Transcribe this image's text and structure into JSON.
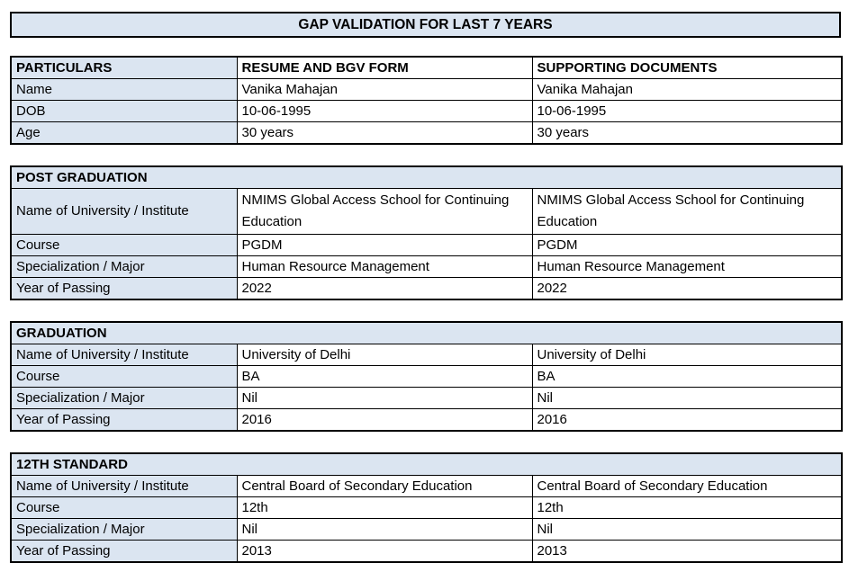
{
  "title": "GAP VALIDATION FOR LAST 7 YEARS",
  "colors": {
    "header_fill": "#dbe5f1",
    "border": "#000000",
    "text": "#000000"
  },
  "particulars_table": {
    "headers": [
      "PARTICULARS",
      "RESUME AND BGV FORM",
      "SUPPORTING DOCUMENTS"
    ],
    "rows": [
      {
        "label": "Name",
        "resume": "Vanika Mahajan",
        "supporting": "Vanika Mahajan"
      },
      {
        "label": "DOB",
        "resume": "10-06-1995",
        "supporting": "10-06-1995"
      },
      {
        "label": "Age",
        "resume": "30 years",
        "supporting": "30 years"
      }
    ]
  },
  "sections": [
    {
      "title": "POST GRADUATION",
      "rows": [
        {
          "label": "Name of University / Institute",
          "resume": "NMIMS Global Access School for Continuing Education",
          "supporting": "NMIMS Global Access School for Continuing Education"
        },
        {
          "label": "Course",
          "resume": "PGDM",
          "supporting": "PGDM"
        },
        {
          "label": "Specialization / Major",
          "resume": "Human Resource Management",
          "supporting": "Human Resource Management"
        },
        {
          "label": "Year of Passing",
          "resume": "2022",
          "supporting": "2022"
        }
      ]
    },
    {
      "title": "GRADUATION",
      "rows": [
        {
          "label": "Name of University / Institute",
          "resume": "University of Delhi",
          "supporting": "University of Delhi"
        },
        {
          "label": "Course",
          "resume": "BA",
          "supporting": "BA"
        },
        {
          "label": "Specialization / Major",
          "resume": "Nil",
          "supporting": "Nil"
        },
        {
          "label": "Year of Passing",
          "resume": "2016",
          "supporting": "2016"
        }
      ]
    },
    {
      "title": "12TH STANDARD",
      "rows": [
        {
          "label": "Name of University / Institute",
          "resume": "Central Board of Secondary Education",
          "supporting": "Central Board of Secondary Education"
        },
        {
          "label": "Course",
          "resume": "12th",
          "supporting": "12th"
        },
        {
          "label": "Specialization / Major",
          "resume": "Nil",
          "supporting": "Nil"
        },
        {
          "label": "Year of Passing",
          "resume": "2013",
          "supporting": "2013"
        }
      ]
    }
  ]
}
